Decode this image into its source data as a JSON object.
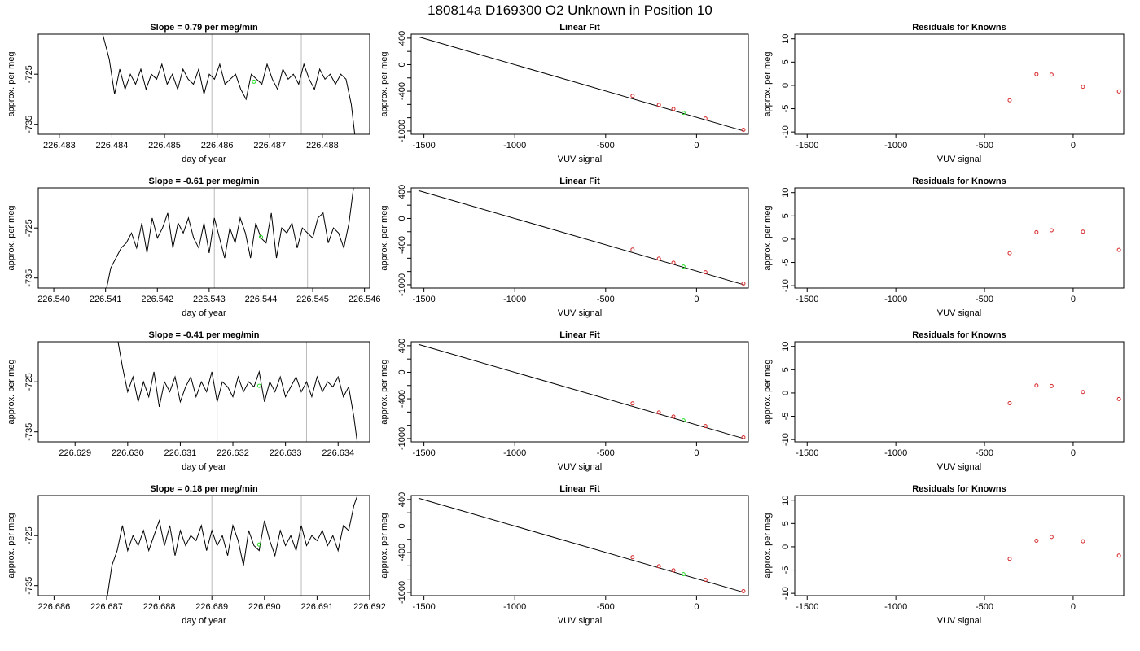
{
  "figure": {
    "title": "180814a      D169300    O2 Unknown in Position  10"
  },
  "chart_data": [
    {
      "type": "line",
      "panel": "timeseries",
      "title": "Slope =  0.79  per meg/min",
      "xlabel": "day of year",
      "ylabel": "approx. per meg",
      "xlim": [
        226.4826,
        226.4889
      ],
      "ylim": [
        -737,
        -717
      ],
      "xticks": [
        "226.483",
        "226.484",
        "226.485",
        "226.486",
        "226.487",
        "226.488"
      ],
      "yticks": [
        "-725",
        "-735"
      ],
      "vlines": [
        226.4859,
        226.4876
      ],
      "series": [
        {
          "x": [
            226.4838,
            226.48395,
            226.48405,
            226.48415,
            226.48425,
            226.48435,
            226.48445,
            226.48455,
            226.48465,
            226.48475,
            226.48485,
            226.48495,
            226.48505,
            226.48515,
            226.48525,
            226.48535,
            226.48545,
            226.48555,
            226.48565,
            226.48575,
            226.48585,
            226.48595,
            226.48605,
            226.48615,
            226.48625,
            226.48635,
            226.48645,
            226.48655,
            226.48665,
            226.48675,
            226.48685,
            226.48695,
            226.48705,
            226.48715,
            226.48725,
            226.48735,
            226.48745,
            226.48755,
            226.48765,
            226.48775,
            226.48785,
            226.48795,
            226.48805,
            226.48815,
            226.48825,
            226.48835,
            226.48845,
            226.48855,
            226.48865
          ],
          "values": [
            -716,
            -722,
            -729,
            -724,
            -728,
            -725,
            -727,
            -724,
            -728,
            -725,
            -726,
            -723,
            -727,
            -725,
            -728,
            -724,
            -726,
            -727,
            -724,
            -729,
            -725,
            -726,
            -723,
            -727,
            -726,
            -725,
            -728,
            -730,
            -725,
            -726,
            -727,
            -723,
            -726,
            -728,
            -724,
            -726,
            -725,
            -727,
            -723,
            -726,
            -728,
            -724,
            -726,
            -725,
            -727,
            -725,
            -726,
            -731,
            -740
          ]
        }
      ],
      "markers": [
        {
          "x": 226.4867,
          "y": -726.5
        }
      ]
    },
    {
      "type": "scatter",
      "panel": "fit",
      "title": "Linear Fit",
      "xlabel": "VUV signal",
      "ylabel": "approx. per meg",
      "xlim": [
        -1570,
        285
      ],
      "ylim": [
        -1050,
        460
      ],
      "xticks": [
        -1500,
        -1000,
        -500,
        0
      ],
      "yticks": [
        400,
        0,
        -400,
        -1000
      ],
      "fit_line": [
        [
          -1530,
          420
        ],
        [
          260,
          -1000
        ]
      ],
      "points": [
        [
          -352,
          -470
        ],
        [
          -207,
          -606
        ],
        [
          -127,
          -668
        ],
        [
          49,
          -812
        ],
        [
          258,
          -982
        ]
      ],
      "unknown": [
        [
          -72,
          -726
        ]
      ]
    },
    {
      "type": "scatter",
      "panel": "residuals",
      "title": "Residuals for Knowns",
      "xlabel": "VUV signal",
      "ylabel": "approx. per meg",
      "xlim": [
        -1570,
        285
      ],
      "ylim": [
        -10.5,
        11
      ],
      "xticks": [
        -1500,
        -1000,
        -500,
        0
      ],
      "yticks": [
        10,
        5,
        0,
        -5,
        -10
      ],
      "points": [
        [
          -358,
          -3.2
        ],
        [
          -207,
          2.4
        ],
        [
          -122,
          2.3
        ],
        [
          55,
          -0.3
        ],
        [
          258,
          -1.3
        ]
      ]
    },
    {
      "type": "line",
      "panel": "timeseries",
      "title": "Slope =  -0.61  per meg/min",
      "xlabel": "day of year",
      "ylabel": "approx. per meg",
      "xlim": [
        226.5397,
        226.5461
      ],
      "ylim": [
        -737,
        -717
      ],
      "xticks": [
        "226.540",
        "226.541",
        "226.542",
        "226.543",
        "226.544",
        "226.545",
        "226.546"
      ],
      "yticks": [
        "-725",
        "-735"
      ],
      "vlines": [
        226.5431,
        226.5449
      ],
      "series": [
        {
          "x": [
            226.541,
            226.5411,
            226.5412,
            226.5413,
            226.5414,
            226.5415,
            226.5416,
            226.5417,
            226.5418,
            226.5419,
            226.542,
            226.5421,
            226.5422,
            226.5423,
            226.5424,
            226.5425,
            226.5426,
            226.5427,
            226.5428,
            226.5429,
            226.543,
            226.5431,
            226.5432,
            226.5433,
            226.5434,
            226.5435,
            226.5436,
            226.5437,
            226.5438,
            226.5439,
            226.544,
            226.5441,
            226.5442,
            226.5443,
            226.5444,
            226.5445,
            226.5446,
            226.5447,
            226.5448,
            226.5449,
            226.545,
            226.5451,
            226.5452,
            226.5453,
            226.5454,
            226.5455,
            226.5456,
            226.5457,
            226.5458
          ],
          "values": [
            -738,
            -733,
            -731,
            -729,
            -728,
            -726,
            -729,
            -724,
            -730,
            -723,
            -727,
            -725,
            -722,
            -729,
            -724,
            -726,
            -723,
            -727,
            -729,
            -724,
            -730,
            -723,
            -727,
            -731,
            -725,
            -728,
            -723,
            -726,
            -731,
            -724,
            -727,
            -728,
            -722,
            -731,
            -725,
            -726,
            -724,
            -729,
            -725,
            -726,
            -727,
            -723,
            -722,
            -728,
            -725,
            -726,
            -729,
            -724,
            -716
          ]
        }
      ],
      "markers": [
        {
          "x": 226.544,
          "y": -726.8
        }
      ]
    },
    {
      "type": "scatter",
      "panel": "fit",
      "title": "Linear Fit",
      "xlabel": "VUV signal",
      "ylabel": "approx. per meg",
      "xlim": [
        -1570,
        285
      ],
      "ylim": [
        -1050,
        460
      ],
      "xticks": [
        -1500,
        -1000,
        -500,
        0
      ],
      "yticks": [
        400,
        0,
        -400,
        -1000
      ],
      "fit_line": [
        [
          -1530,
          420
        ],
        [
          260,
          -1000
        ]
      ],
      "points": [
        [
          -352,
          -470
        ],
        [
          -207,
          -606
        ],
        [
          -127,
          -668
        ],
        [
          49,
          -812
        ],
        [
          258,
          -982
        ]
      ],
      "unknown": [
        [
          -72,
          -726
        ]
      ]
    },
    {
      "type": "scatter",
      "panel": "residuals",
      "title": "Residuals for Knowns",
      "xlabel": "VUV signal",
      "ylabel": "approx. per meg",
      "xlim": [
        -1570,
        285
      ],
      "ylim": [
        -10.5,
        11
      ],
      "xticks": [
        -1500,
        -1000,
        -500,
        0
      ],
      "yticks": [
        10,
        5,
        0,
        -5,
        -10
      ],
      "points": [
        [
          -358,
          -3.0
        ],
        [
          -207,
          1.5
        ],
        [
          -122,
          1.9
        ],
        [
          55,
          1.6
        ],
        [
          258,
          -2.3
        ]
      ]
    },
    {
      "type": "line",
      "panel": "timeseries",
      "title": "Slope =  -0.41  per meg/min",
      "xlabel": "day of year",
      "ylabel": "approx. per meg",
      "xlim": [
        226.6283,
        226.6346
      ],
      "ylim": [
        -737,
        -717
      ],
      "xticks": [
        "226.629",
        "226.630",
        "226.631",
        "226.632",
        "226.633",
        "226.634"
      ],
      "yticks": [
        "-725",
        "-735"
      ],
      "vlines": [
        226.6317,
        226.6334
      ],
      "series": [
        {
          "x": [
            226.6298,
            226.6299,
            226.63,
            226.6301,
            226.6302,
            226.6303,
            226.6304,
            226.6305,
            226.6306,
            226.6307,
            226.6308,
            226.6309,
            226.631,
            226.6311,
            226.6312,
            226.6313,
            226.6314,
            226.6315,
            226.6316,
            226.6317,
            226.6318,
            226.6319,
            226.632,
            226.6321,
            226.6322,
            226.6323,
            226.6324,
            226.6325,
            226.6326,
            226.6327,
            226.6328,
            226.6329,
            226.633,
            226.6331,
            226.6332,
            226.6333,
            226.6334,
            226.6335,
            226.6336,
            226.6337,
            226.6338,
            226.6339,
            226.634,
            226.6341,
            226.6342,
            226.6343,
            226.6344
          ],
          "values": [
            -716,
            -722,
            -727,
            -724,
            -729,
            -725,
            -728,
            -723,
            -730,
            -725,
            -727,
            -724,
            -729,
            -726,
            -724,
            -728,
            -725,
            -727,
            -723,
            -729,
            -725,
            -726,
            -728,
            -724,
            -727,
            -725,
            -726,
            -723,
            -729,
            -725,
            -727,
            -724,
            -728,
            -726,
            -724,
            -727,
            -725,
            -728,
            -724,
            -727,
            -725,
            -726,
            -724,
            -728,
            -726,
            -732,
            -740
          ]
        }
      ],
      "markers": [
        {
          "x": 226.6325,
          "y": -725.8
        }
      ]
    },
    {
      "type": "scatter",
      "panel": "fit",
      "title": "Linear Fit",
      "xlabel": "VUV signal",
      "ylabel": "approx. per meg",
      "xlim": [
        -1570,
        285
      ],
      "ylim": [
        -1050,
        460
      ],
      "xticks": [
        -1500,
        -1000,
        -500,
        0
      ],
      "yticks": [
        400,
        0,
        -400,
        -1000
      ],
      "fit_line": [
        [
          -1530,
          420
        ],
        [
          260,
          -1000
        ]
      ],
      "points": [
        [
          -352,
          -470
        ],
        [
          -207,
          -606
        ],
        [
          -127,
          -668
        ],
        [
          49,
          -812
        ],
        [
          258,
          -982
        ]
      ],
      "unknown": [
        [
          -72,
          -726
        ]
      ]
    },
    {
      "type": "scatter",
      "panel": "residuals",
      "title": "Residuals for Knowns",
      "xlabel": "VUV signal",
      "ylabel": "approx. per meg",
      "xlim": [
        -1570,
        285
      ],
      "ylim": [
        -10.5,
        11
      ],
      "xticks": [
        -1500,
        -1000,
        -500,
        0
      ],
      "yticks": [
        10,
        5,
        0,
        -5,
        -10
      ],
      "points": [
        [
          -358,
          -2.2
        ],
        [
          -207,
          1.6
        ],
        [
          -122,
          1.5
        ],
        [
          55,
          0.2
        ],
        [
          258,
          -1.3
        ]
      ]
    },
    {
      "type": "line",
      "panel": "timeseries",
      "title": "Slope =  0.18  per meg/min",
      "xlabel": "day of year",
      "ylabel": "approx. per meg",
      "xlim": [
        226.6857,
        226.692
      ],
      "ylim": [
        -737,
        -717
      ],
      "xticks": [
        "226.686",
        "226.687",
        "226.688",
        "226.689",
        "226.690",
        "226.691",
        "226.692"
      ],
      "yticks": [
        "-725",
        "-735"
      ],
      "vlines": [
        226.689,
        226.6907
      ],
      "series": [
        {
          "x": [
            226.687,
            226.6871,
            226.6872,
            226.6873,
            226.6874,
            226.6875,
            226.6876,
            226.6877,
            226.6878,
            226.6879,
            226.688,
            226.6881,
            226.6882,
            226.6883,
            226.6884,
            226.6885,
            226.6886,
            226.6887,
            226.6888,
            226.6889,
            226.689,
            226.6891,
            226.6892,
            226.6893,
            226.6894,
            226.6895,
            226.6896,
            226.6897,
            226.6898,
            226.6899,
            226.69,
            226.6901,
            226.6902,
            226.6903,
            226.6904,
            226.6905,
            226.6906,
            226.6907,
            226.6908,
            226.6909,
            226.691,
            226.6911,
            226.6912,
            226.6913,
            226.6914,
            226.6915,
            226.6916,
            226.6917,
            226.6918
          ],
          "values": [
            -738,
            -731,
            -728,
            -723,
            -728,
            -725,
            -727,
            -724,
            -728,
            -725,
            -722,
            -727,
            -723,
            -729,
            -724,
            -727,
            -725,
            -726,
            -723,
            -728,
            -724,
            -727,
            -725,
            -729,
            -723,
            -726,
            -731,
            -724,
            -727,
            -728,
            -722,
            -726,
            -729,
            -724,
            -727,
            -725,
            -728,
            -723,
            -727,
            -725,
            -726,
            -724,
            -727,
            -725,
            -728,
            -723,
            -724,
            -719,
            -716
          ]
        }
      ],
      "markers": [
        {
          "x": 226.6899,
          "y": -726.8
        }
      ]
    },
    {
      "type": "scatter",
      "panel": "fit",
      "title": "Linear Fit",
      "xlabel": "VUV signal",
      "ylabel": "approx. per meg",
      "xlim": [
        -1570,
        285
      ],
      "ylim": [
        -1050,
        460
      ],
      "xticks": [
        -1500,
        -1000,
        -500,
        0
      ],
      "yticks": [
        400,
        0,
        -400,
        -1000
      ],
      "fit_line": [
        [
          -1530,
          420
        ],
        [
          260,
          -1000
        ]
      ],
      "points": [
        [
          -352,
          -470
        ],
        [
          -207,
          -606
        ],
        [
          -127,
          -668
        ],
        [
          49,
          -812
        ],
        [
          258,
          -982
        ]
      ],
      "unknown": [
        [
          -72,
          -726
        ]
      ]
    },
    {
      "type": "scatter",
      "panel": "residuals",
      "title": "Residuals for Knowns",
      "xlabel": "VUV signal",
      "ylabel": "approx. per meg",
      "xlim": [
        -1570,
        285
      ],
      "ylim": [
        -10.5,
        11
      ],
      "xticks": [
        -1500,
        -1000,
        -500,
        0
      ],
      "yticks": [
        10,
        5,
        0,
        -5,
        -10
      ],
      "points": [
        [
          -358,
          -2.6
        ],
        [
          -207,
          1.3
        ],
        [
          -122,
          2.1
        ],
        [
          55,
          1.2
        ],
        [
          258,
          -1.9
        ]
      ]
    }
  ],
  "colors": {
    "line": "#000000",
    "known_marker": "#d62728",
    "unknown_marker": "#22dd22",
    "vline": "#bbbbbb"
  }
}
